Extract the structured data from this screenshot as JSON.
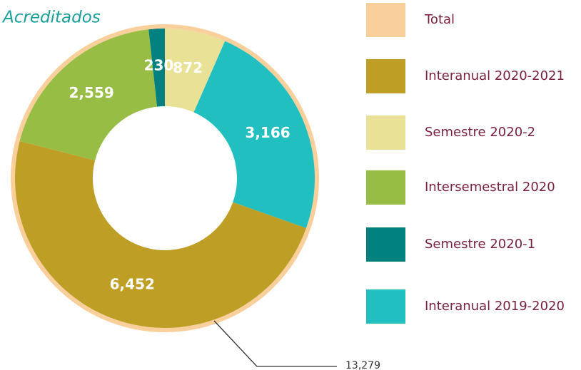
{
  "chart_data": {
    "type": "donut",
    "title": "Acreditados",
    "categories": [
      "Semestre 2020-2",
      "Interanual 2019-2020",
      "Interanual 2020-2021",
      "Intersemestral 2020",
      "Semestre 2020-1"
    ],
    "values": [
      872,
      3166,
      6452,
      2559,
      230
    ],
    "value_labels": [
      "872",
      "3,166",
      "6,452",
      "2,559",
      "230"
    ],
    "colors": [
      "#e8e196",
      "#21bfbf",
      "#bf9e26",
      "#98bd45",
      "#00807f"
    ],
    "total": {
      "name": "Total",
      "value": 13279,
      "label": "13,279",
      "color": "#f9cf9c"
    }
  }
}
